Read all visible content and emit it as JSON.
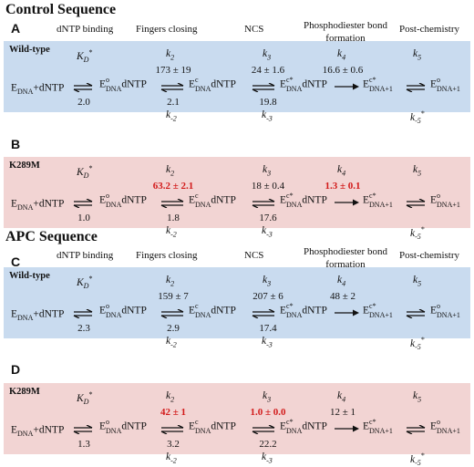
{
  "sections": [
    {
      "title": "Control Sequence",
      "headers": [
        "dNTP binding",
        "Fingers closing",
        "NCS",
        "Phosphodiester bond formation",
        "Post-chemistry"
      ],
      "panels": [
        {
          "letter": "A",
          "label": "Wild-type",
          "color": "blue",
          "kd_forward": "",
          "kd_value": "2.0",
          "k2": "173 ± 19",
          "k2_red": false,
          "km2": "2.1",
          "k3": "24 ± 1.6",
          "k3_red": false,
          "km3": "19.8",
          "k4": "16.6 ± 0.6",
          "k4_red": false
        },
        {
          "letter": "B",
          "label": "K289M",
          "color": "pink",
          "kd_value": "1.0",
          "k2": "63.2 ± 2.1",
          "k2_red": true,
          "km2": "1.8",
          "k3": "18 ± 0.4",
          "k3_red": false,
          "km3": "17.6",
          "k4": "1.3 ± 0.1",
          "k4_red": true
        }
      ]
    },
    {
      "title": "APC Sequence",
      "headers": [
        "dNTP binding",
        "Fingers closing",
        "NCS",
        "Phosphodiester bond formation",
        "Post-chemistry"
      ],
      "panels": [
        {
          "letter": "C",
          "label": "Wild-type",
          "color": "blue",
          "kd_value": "2.3",
          "k2": "159 ± 7",
          "k2_red": false,
          "km2": "2.9",
          "k3": "207 ± 6",
          "k3_red": false,
          "km3": "17.4",
          "k4": "48 ± 2",
          "k4_red": false
        },
        {
          "letter": "D",
          "label": "K289M",
          "color": "pink",
          "kd_value": "1.3",
          "k2": "42 ± 1",
          "k2_red": true,
          "km2": "3.2",
          "k3": "1.0 ± 0.0",
          "k3_red": true,
          "km3": "22.2",
          "k4": "12 ± 1",
          "k4_red": false
        }
      ]
    }
  ],
  "symbols": {
    "kd": "K",
    "kd_sub": "D",
    "kd_sup": "*",
    "k2": "k",
    "k2_sub": "2",
    "k3": "k",
    "k3_sub": "3",
    "k4": "k",
    "k4_sub": "4",
    "k5": "k",
    "k5_sub": "5",
    "km2": "k",
    "km2_sub": "-2",
    "km3": "k",
    "km3_sub": "-3",
    "km5": "k",
    "km5_sub": "-5",
    "km5_sup": "*"
  },
  "species": {
    "s1_a": "E",
    "s1_a_sub": "DNA",
    "s1_b": "+dNTP",
    "s2_a": "E",
    "s2_a_sup": "o",
    "s2_a_sub": "DNA",
    "s2_b": "dNTP",
    "s3_a": "E",
    "s3_a_sup": "c",
    "s3_a_sub": "DNA",
    "s3_b": "dNTP",
    "s4_a": "E",
    "s4_a_sup": "c*",
    "s4_a_sub": "DNA",
    "s4_b": "dNTP",
    "s5_a": "E",
    "s5_a_sup": "c*",
    "s5_a_sub": "DNA+1",
    "s6_a": "E",
    "s6_a_sup": "o",
    "s6_a_sub": "DNA+1"
  },
  "colors": {
    "blue_panel": "#c9dbef",
    "pink_panel": "#f2d4d3",
    "highlight": "#d21a1a"
  }
}
